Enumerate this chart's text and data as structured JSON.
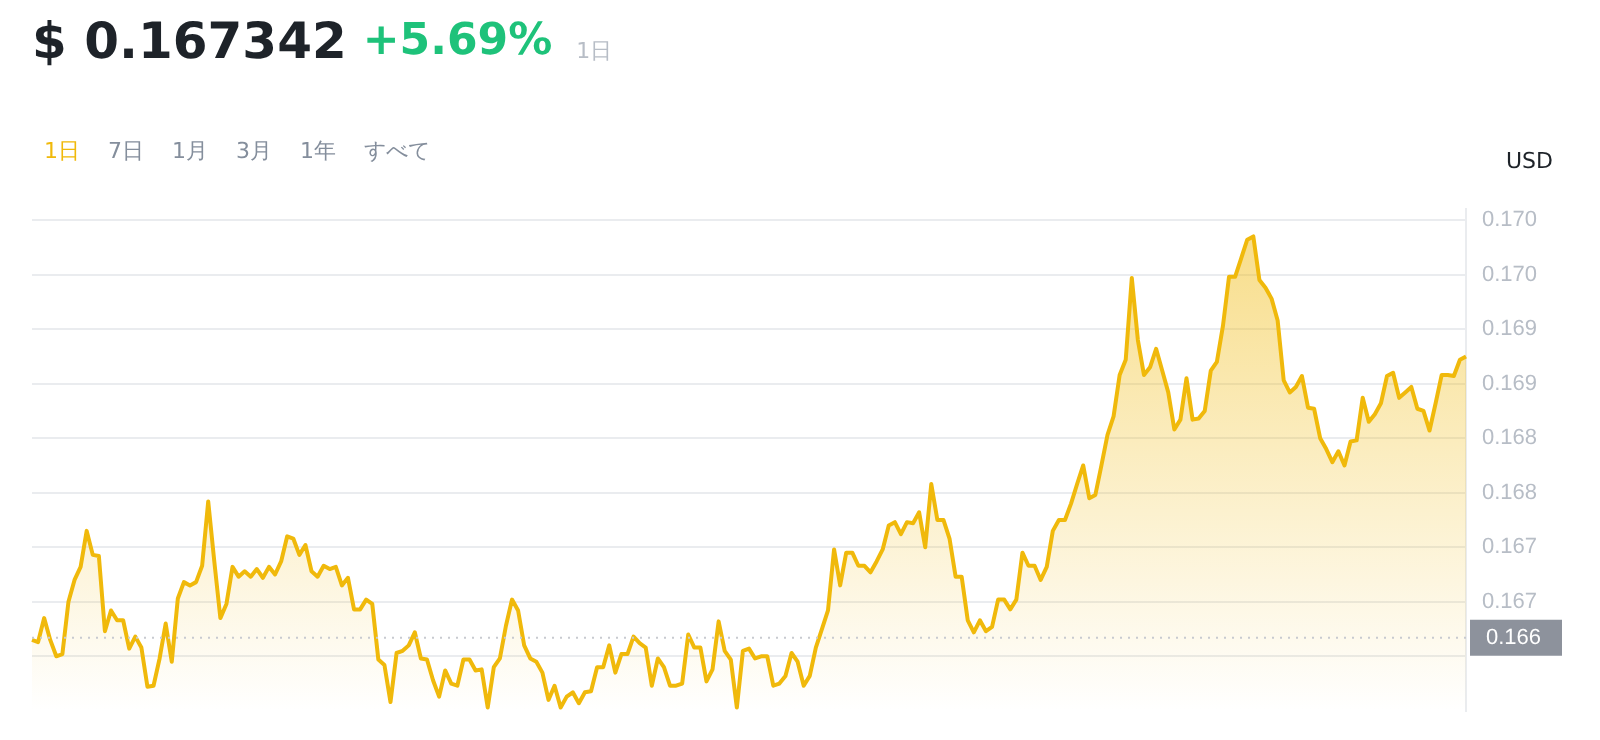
{
  "chart_data": {
    "type": "area",
    "title": "$ 0.167342",
    "subtitle": "+5.69%",
    "ylabel": "USD",
    "annotations": [
      "1日",
      "1日",
      "7日",
      "1月",
      "3月",
      "1年",
      "すべて"
    ],
    "categories": [
      null,
      null,
      null,
      null,
      null,
      null,
      null,
      null,
      null,
      null,
      null,
      null,
      null,
      null,
      null,
      null,
      null,
      null,
      null,
      null,
      null,
      null,
      null,
      null,
      null,
      null,
      null,
      null,
      null,
      null,
      null,
      null,
      null,
      null,
      null,
      null,
      null,
      null,
      null,
      null,
      null,
      null,
      null,
      null,
      null,
      null,
      null,
      null,
      null,
      null,
      null,
      null,
      null,
      null,
      null,
      null,
      null,
      null,
      null,
      null,
      null,
      null,
      null,
      null,
      null,
      null,
      null,
      null,
      null,
      null,
      null,
      null,
      null,
      null,
      null,
      null,
      null,
      null,
      null,
      null,
      null,
      null,
      null,
      null,
      null,
      null,
      null,
      null,
      null,
      null,
      null,
      null,
      null,
      null,
      null,
      null,
      null,
      null,
      null,
      null,
      null,
      null,
      null,
      null,
      null,
      null,
      null,
      null,
      null,
      null,
      null,
      null,
      null,
      null,
      null,
      null,
      null,
      null,
      null,
      null,
      null,
      null,
      null,
      null,
      null,
      null,
      null,
      null,
      null,
      null,
      null,
      null,
      null,
      null,
      null,
      null,
      null,
      null,
      null,
      null,
      null,
      null,
      null,
      null,
      null,
      null,
      null,
      null,
      null,
      null,
      null,
      null,
      null,
      null,
      null,
      null,
      null,
      null,
      null,
      null,
      null,
      null,
      null,
      null,
      null,
      null,
      null,
      null,
      null,
      null,
      null,
      null,
      null,
      null,
      null,
      null,
      null,
      null,
      null,
      null,
      null,
      null,
      null,
      null,
      null,
      null,
      null,
      null,
      null,
      null,
      null,
      null,
      null,
      null,
      null,
      null,
      null,
      null,
      null,
      null,
      null,
      null,
      null,
      null,
      null,
      null,
      null,
      null,
      null,
      null,
      null,
      null,
      null,
      null,
      null,
      null,
      null,
      null,
      null,
      null,
      null,
      null,
      null,
      null,
      null,
      null,
      null,
      null,
      null,
      null,
      null,
      null,
      null,
      null,
      null,
      null,
      null
    ],
    "series": [
      {
        "color": "#f0b90b",
        "values": [
          0.16635,
          0.16633,
          0.16655,
          0.16635,
          0.1662,
          0.16622,
          0.1667,
          0.1669,
          0.16702,
          0.16735,
          0.16713,
          0.16712,
          0.16643,
          0.16662,
          0.16653,
          0.16653,
          0.16627,
          0.16638,
          0.16628,
          0.16592,
          0.16593,
          0.16618,
          0.1665,
          0.16615,
          0.16673,
          0.16688,
          0.16685,
          0.16688,
          0.16703,
          0.16762,
          0.16707,
          0.16655,
          0.16668,
          0.16702,
          0.16693,
          0.16698,
          0.16693,
          0.167,
          0.16692,
          0.16702,
          0.16695,
          0.16707,
          0.1673,
          0.16728,
          0.16713,
          0.16722,
          0.16698,
          0.16693,
          0.16703,
          0.167,
          0.16702,
          0.16685,
          0.16692,
          0.16663,
          0.16663,
          0.16672,
          0.16668,
          0.16617,
          0.16612,
          0.16578,
          0.16623,
          0.16625,
          0.1663,
          0.16642,
          0.16618,
          0.16617,
          0.16598,
          0.16583,
          0.16607,
          0.16595,
          0.16593,
          0.16617,
          0.16617,
          0.16607,
          0.16608,
          0.16573,
          0.1661,
          0.16618,
          0.16648,
          0.16672,
          0.16662,
          0.1663,
          0.16618,
          0.16615,
          0.16605,
          0.1658,
          0.16593,
          0.16573,
          0.16583,
          0.16587,
          0.16577,
          0.16587,
          0.16588,
          0.1661,
          0.1661,
          0.1663,
          0.16605,
          0.16622,
          0.16622,
          0.16638,
          0.16632,
          0.16628,
          0.16593,
          0.16618,
          0.1661,
          0.16593,
          0.16593,
          0.16595,
          0.1664,
          0.16628,
          0.16628,
          0.16597,
          0.16608,
          0.16652,
          0.16625,
          0.16617,
          0.16573,
          0.16625,
          0.16627,
          0.16618,
          0.1662,
          0.1662,
          0.16593,
          0.16595,
          0.16602,
          0.16623,
          0.16615,
          0.16593,
          0.16602,
          0.16628,
          0.16645,
          0.16662,
          0.16718,
          0.16685,
          0.16715,
          0.16715,
          0.16703,
          0.16703,
          0.16697,
          0.16707,
          0.16718,
          0.1674,
          0.16743,
          0.16732,
          0.16743,
          0.16742,
          0.16752,
          0.1672,
          0.16778,
          0.16745,
          0.16745,
          0.16728,
          0.16693,
          0.16693,
          0.16653,
          0.16642,
          0.16653,
          0.16643,
          0.16647,
          0.16672,
          0.16672,
          0.16663,
          0.16672,
          0.16715,
          0.16703,
          0.16703,
          0.1669,
          0.16702,
          0.16735,
          0.16745,
          0.16745,
          0.1676,
          0.16778,
          0.16795,
          0.16765,
          0.16768,
          0.16795,
          0.16823,
          0.1684,
          0.16878,
          0.16892,
          0.16967,
          0.1691,
          0.16878,
          0.16885,
          0.16902,
          0.16882,
          0.16862,
          0.16828,
          0.16837,
          0.16875,
          0.16837,
          0.16838,
          0.16845,
          0.16882,
          0.1689,
          0.16923,
          0.16968,
          0.16968,
          0.16985,
          0.17002,
          0.17005,
          0.16965,
          0.16958,
          0.16948,
          0.16928,
          0.16873,
          0.16862,
          0.16867,
          0.16877,
          0.16848,
          0.16847,
          0.1682,
          0.1681,
          0.16798,
          0.16808,
          0.16795,
          0.16817,
          0.16818,
          0.16857,
          0.16835,
          0.16842,
          0.16852,
          0.16877,
          0.1688,
          0.16857,
          0.16862,
          0.16867,
          0.16847,
          0.16845,
          0.16827,
          0.16852,
          0.16878,
          0.16878,
          0.16877,
          0.16892,
          0.16895
        ]
      }
    ],
    "ylim": [
      0.1657,
      0.1703
    ],
    "yticks": [
      {
        "value": 0.1702,
        "label": "0.170"
      },
      {
        "value": 0.1697,
        "label": "0.170"
      },
      {
        "value": 0.1692,
        "label": "0.169"
      },
      {
        "value": 0.1687,
        "label": "0.169"
      },
      {
        "value": 0.1682,
        "label": "0.168"
      },
      {
        "value": 0.1677,
        "label": "0.168"
      },
      {
        "value": 0.1672,
        "label": "0.167"
      },
      {
        "value": 0.1667,
        "label": "0.167"
      },
      {
        "value": 0.1662,
        "label": null
      }
    ],
    "ref_lines": [
      {
        "axis": "y",
        "value": 0.16637,
        "label": "0.166",
        "color": "#c8cad0",
        "line_style": "dotted"
      }
    ],
    "grid": "y",
    "legend": false,
    "tick_labels": "y",
    "marker": "none",
    "line_style": "solid"
  }
}
